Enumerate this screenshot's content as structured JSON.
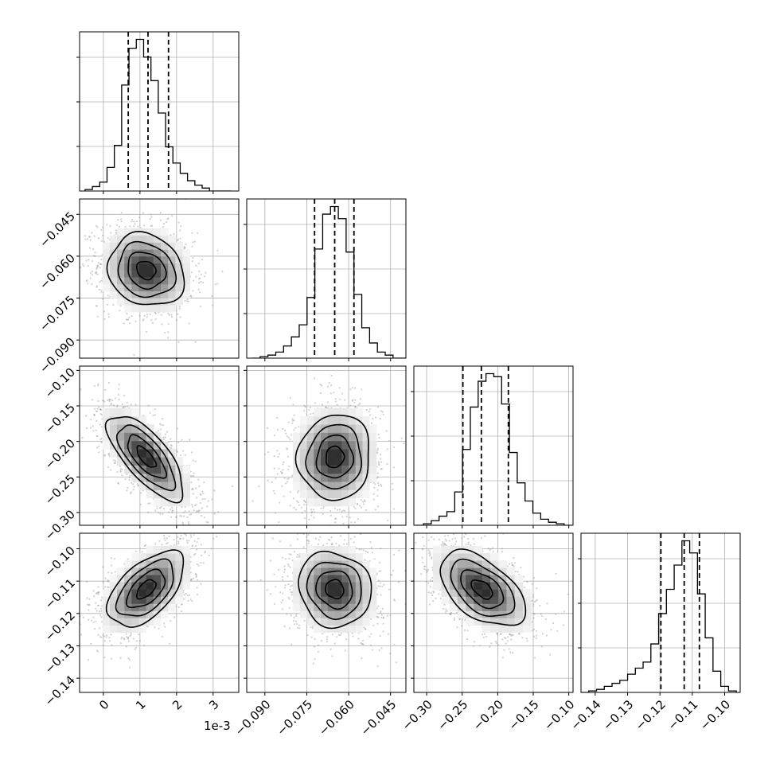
{
  "chart_data": {
    "type": "corner",
    "grid": true,
    "axis_offset_text": "1e-3",
    "parameters": [
      {
        "range": [
          -0.00065,
          0.0037
        ],
        "ticks": [
          0,
          0.001,
          0.002,
          0.003
        ],
        "tick_labels": [
          "0",
          "1",
          "2",
          "3"
        ],
        "hist_bins": [
          -0.0005,
          -0.0003,
          -0.0001,
          0.0001,
          0.0003,
          0.0005,
          0.0007,
          0.0009,
          0.0011,
          0.0013,
          0.0015,
          0.0017,
          0.0019,
          0.0021,
          0.0023,
          0.0025,
          0.0027,
          0.0029,
          0.0031,
          0.0033,
          0.0035
        ],
        "hist_counts": [
          1,
          3,
          6,
          16,
          31,
          72,
          97,
          103,
          91,
          75,
          53,
          30,
          19,
          12,
          7,
          4,
          2,
          0,
          0,
          0
        ],
        "quantiles": [
          0.00068,
          0.00122,
          0.00178
        ]
      },
      {
        "range": [
          -0.0965,
          -0.0395
        ],
        "ticks": [
          -0.09,
          -0.075,
          -0.06,
          -0.045
        ],
        "tick_labels": [
          "−0.090",
          "−0.075",
          "−0.060",
          "−0.045"
        ],
        "hist_bins": [
          -0.0945,
          -0.0917,
          -0.0889,
          -0.0861,
          -0.0833,
          -0.0805,
          -0.0777,
          -0.0749,
          -0.0721,
          -0.0693,
          -0.0665,
          -0.0637,
          -0.0609,
          -0.0581,
          -0.0553,
          -0.0525,
          -0.0497,
          -0.0469,
          -0.0441,
          -0.0413,
          -0.0385
        ],
        "hist_counts": [
          0,
          1,
          2,
          4,
          8,
          14,
          22,
          40,
          72,
          95,
          100,
          92,
          70,
          42,
          20,
          10,
          4,
          2,
          0,
          0
        ],
        "quantiles": [
          -0.0722,
          -0.065,
          -0.0581
        ]
      },
      {
        "range": [
          -0.318,
          -0.094
        ],
        "ticks": [
          -0.3,
          -0.25,
          -0.2,
          -0.15,
          -0.1
        ],
        "tick_labels": [
          "−0.30",
          "−0.25",
          "−0.20",
          "−0.15",
          "−0.10"
        ],
        "hist_bins": [
          -0.3155,
          -0.3045,
          -0.2935,
          -0.2825,
          -0.2715,
          -0.2605,
          -0.2495,
          -0.2385,
          -0.2275,
          -0.2165,
          -0.2055,
          -0.1945,
          -0.1835,
          -0.1725,
          -0.1615,
          -0.1505,
          -0.1395,
          -0.1285,
          -0.1175,
          -0.1065,
          -0.0955
        ],
        "hist_counts": [
          0,
          1,
          3,
          6,
          9,
          22,
          50,
          78,
          95,
          100,
          98,
          80,
          48,
          28,
          16,
          8,
          4,
          2,
          1,
          0
        ],
        "quantiles": [
          -0.249,
          -0.223,
          -0.185
        ]
      },
      {
        "range": [
          -0.1444,
          -0.0952
        ],
        "ticks": [
          -0.14,
          -0.13,
          -0.12,
          -0.11,
          -0.1
        ],
        "tick_labels": [
          "−0.14",
          "−0.13",
          "−0.12",
          "−0.11",
          "−0.10"
        ],
        "hist_bins": [
          -0.1444,
          -0.142,
          -0.1396,
          -0.1372,
          -0.1348,
          -0.1324,
          -0.13,
          -0.1276,
          -0.1252,
          -0.1228,
          -0.1204,
          -0.118,
          -0.1156,
          -0.1132,
          -0.1108,
          -0.1084,
          -0.106,
          -0.1036,
          -0.1012,
          -0.0988,
          -0.0964
        ],
        "hist_counts": [
          0,
          1,
          2,
          4,
          6,
          8,
          12,
          16,
          20,
          32,
          52,
          68,
          84,
          100,
          92,
          65,
          36,
          14,
          4,
          1
        ],
        "quantiles": [
          -0.1197,
          -0.1125,
          -0.1078
        ]
      }
    ],
    "pairs": [
      {
        "row": 1,
        "col": 0,
        "center": [
          0.00117,
          -0.065
        ],
        "sigma": [
          0.00052,
          0.0065
        ],
        "rho": -0.15
      },
      {
        "row": 2,
        "col": 0,
        "center": [
          0.00117,
          -0.222
        ],
        "sigma": [
          0.00052,
          0.03
        ],
        "rho": -0.72
      },
      {
        "row": 2,
        "col": 1,
        "center": [
          -0.065,
          -0.222
        ],
        "sigma": [
          0.0065,
          0.03
        ],
        "rho": 0.05
      },
      {
        "row": 3,
        "col": 0,
        "center": [
          0.00117,
          -0.1125
        ],
        "sigma": [
          0.00052,
          0.0058
        ],
        "rho": 0.55
      },
      {
        "row": 3,
        "col": 1,
        "center": [
          -0.065,
          -0.1125
        ],
        "sigma": [
          0.0065,
          0.0058
        ],
        "rho": -0.1
      },
      {
        "row": 3,
        "col": 2,
        "center": [
          -0.222,
          -0.1125
        ],
        "sigma": [
          0.03,
          0.0058
        ],
        "rho": -0.52
      }
    ]
  }
}
